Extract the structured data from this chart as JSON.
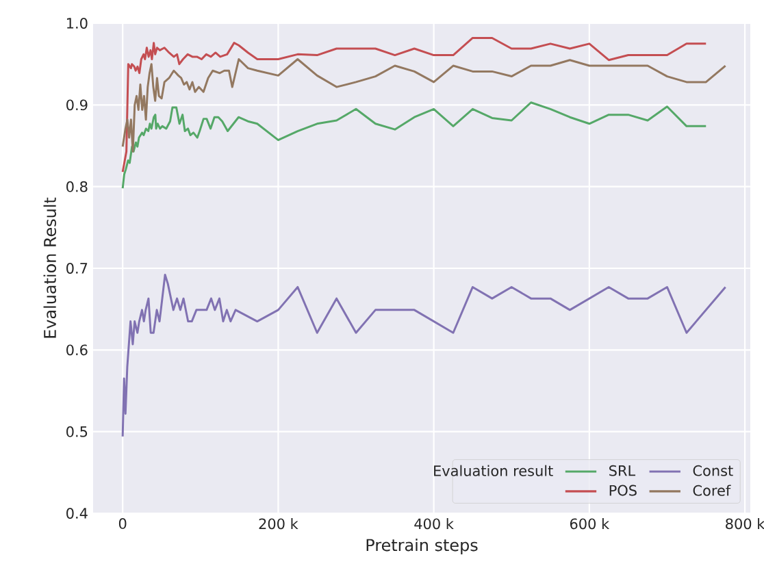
{
  "chart_data": {
    "type": "line",
    "xlabel": "Pretrain steps",
    "ylabel": "Evaluation Result",
    "legend_title": "Evaluation result",
    "xlim": [
      -38000,
      807000
    ],
    "ylim": [
      0.4,
      1.0
    ],
    "xticks": [
      {
        "value": 0,
        "label": "0"
      },
      {
        "value": 200000,
        "label": "200 k"
      },
      {
        "value": 400000,
        "label": "400 k"
      },
      {
        "value": 600000,
        "label": "600 k"
      },
      {
        "value": 800000,
        "label": "800 k"
      }
    ],
    "yticks": [
      {
        "value": 0.4,
        "label": "0.4"
      },
      {
        "value": 0.5,
        "label": "0.5"
      },
      {
        "value": 0.6,
        "label": "0.6"
      },
      {
        "value": 0.7,
        "label": "0.7"
      },
      {
        "value": 0.8,
        "label": "0.8"
      },
      {
        "value": 0.9,
        "label": "0.9"
      },
      {
        "value": 1.0,
        "label": "1.0"
      }
    ],
    "grid": true,
    "legend": "bottom right",
    "marker": "none",
    "line_style": "solid",
    "series": [
      {
        "name": "SRL",
        "color": "#55a868",
        "x": [
          0,
          2000,
          4000,
          7000,
          9000,
          12000,
          14000,
          17000,
          19000,
          21000,
          25000,
          27000,
          30000,
          33000,
          35000,
          37000,
          40000,
          42000,
          43000,
          45000,
          48000,
          51000,
          56000,
          61000,
          64000,
          69000,
          73000,
          77000,
          80000,
          84000,
          87000,
          91000,
          96000,
          99000,
          104000,
          108000,
          113000,
          118000,
          123000,
          128000,
          135000,
          149000,
          161000,
          173000,
          200000,
          225000,
          250000,
          275000,
          300000,
          325000,
          350000,
          375000,
          400000,
          425000,
          450000,
          475000,
          500000,
          525000,
          550000,
          575000,
          600000,
          625000,
          650000,
          675000,
          700000,
          725000,
          750000
        ],
        "values": [
          0.798,
          0.815,
          0.821,
          0.832,
          0.829,
          0.849,
          0.843,
          0.854,
          0.849,
          0.86,
          0.866,
          0.863,
          0.871,
          0.868,
          0.877,
          0.871,
          0.885,
          0.888,
          0.871,
          0.877,
          0.871,
          0.874,
          0.871,
          0.88,
          0.897,
          0.897,
          0.877,
          0.888,
          0.868,
          0.871,
          0.863,
          0.866,
          0.86,
          0.868,
          0.883,
          0.883,
          0.871,
          0.885,
          0.885,
          0.88,
          0.868,
          0.885,
          0.88,
          0.877,
          0.857,
          0.868,
          0.877,
          0.881,
          0.895,
          0.877,
          0.87,
          0.885,
          0.895,
          0.874,
          0.895,
          0.884,
          0.881,
          0.903,
          0.895,
          0.885,
          0.877,
          0.888,
          0.888,
          0.881,
          0.898,
          0.874,
          0.874
        ]
      },
      {
        "name": "POS",
        "color": "#c44e52",
        "x": [
          0,
          4800,
          7200,
          10700,
          11900,
          14900,
          16700,
          19100,
          21500,
          23900,
          26900,
          28700,
          31000,
          33400,
          35800,
          37600,
          40000,
          41800,
          44200,
          47800,
          53700,
          59700,
          65700,
          69900,
          72800,
          77600,
          83600,
          89600,
          95500,
          101500,
          107500,
          113400,
          119400,
          125400,
          134300,
          143300,
          149300,
          161200,
          173100,
          200000,
          225000,
          250000,
          275000,
          300000,
          325000,
          350000,
          375000,
          400000,
          425000,
          450000,
          475000,
          500000,
          525000,
          550000,
          575000,
          600000,
          625000,
          650000,
          675000,
          700000,
          725000,
          750000
        ],
        "values": [
          0.818,
          0.843,
          0.95,
          0.945,
          0.95,
          0.947,
          0.942,
          0.947,
          0.939,
          0.956,
          0.962,
          0.956,
          0.97,
          0.959,
          0.967,
          0.956,
          0.976,
          0.962,
          0.97,
          0.967,
          0.97,
          0.964,
          0.959,
          0.962,
          0.95,
          0.956,
          0.962,
          0.959,
          0.959,
          0.956,
          0.962,
          0.959,
          0.964,
          0.959,
          0.962,
          0.976,
          0.973,
          0.964,
          0.956,
          0.956,
          0.962,
          0.961,
          0.969,
          0.969,
          0.969,
          0.961,
          0.969,
          0.961,
          0.961,
          0.982,
          0.982,
          0.969,
          0.969,
          0.975,
          0.969,
          0.975,
          0.955,
          0.961,
          0.961,
          0.961,
          0.975,
          0.975
        ]
      },
      {
        "name": "Const",
        "color": "#8172b2",
        "x": [
          0,
          1800,
          3600,
          5900,
          10100,
          13000,
          15400,
          19000,
          21300,
          24900,
          27300,
          29600,
          33200,
          36100,
          39700,
          43900,
          47400,
          54500,
          58100,
          65200,
          69900,
          74100,
          78200,
          84100,
          88900,
          94800,
          107900,
          113800,
          118500,
          124400,
          129200,
          133900,
          138700,
          145200,
          173000,
          200000,
          225000,
          250000,
          275000,
          300000,
          325000,
          375000,
          425000,
          450000,
          475000,
          500000,
          525000,
          550000,
          575000,
          625000,
          650000,
          675000,
          700000,
          725000,
          775000
        ],
        "values": [
          0.494,
          0.565,
          0.522,
          0.579,
          0.635,
          0.607,
          0.635,
          0.621,
          0.635,
          0.649,
          0.635,
          0.649,
          0.663,
          0.621,
          0.621,
          0.649,
          0.635,
          0.692,
          0.681,
          0.649,
          0.663,
          0.649,
          0.663,
          0.635,
          0.635,
          0.649,
          0.649,
          0.663,
          0.649,
          0.663,
          0.635,
          0.649,
          0.635,
          0.649,
          0.635,
          0.649,
          0.677,
          0.621,
          0.663,
          0.621,
          0.649,
          0.649,
          0.621,
          0.677,
          0.663,
          0.677,
          0.663,
          0.663,
          0.649,
          0.677,
          0.663,
          0.663,
          0.677,
          0.621,
          0.677
        ]
      },
      {
        "name": "Coref",
        "color": "#937860",
        "x": [
          0,
          3600,
          6000,
          8300,
          10700,
          13100,
          15500,
          17900,
          20300,
          22700,
          25100,
          27500,
          29900,
          32200,
          34600,
          37000,
          39400,
          41800,
          44200,
          46600,
          50100,
          53700,
          59700,
          65700,
          71600,
          75200,
          78800,
          82400,
          86000,
          89600,
          93100,
          97900,
          103900,
          109900,
          115800,
          124800,
          130700,
          136700,
          140900,
          149300,
          161200,
          173100,
          200000,
          225000,
          250000,
          275000,
          300000,
          325000,
          350000,
          375000,
          400000,
          425000,
          450000,
          475000,
          500000,
          525000,
          550000,
          575000,
          600000,
          625000,
          650000,
          675000,
          700000,
          725000,
          750000,
          775000
        ],
        "values": [
          0.849,
          0.871,
          0.882,
          0.86,
          0.882,
          0.843,
          0.9,
          0.911,
          0.894,
          0.925,
          0.894,
          0.911,
          0.882,
          0.922,
          0.939,
          0.95,
          0.922,
          0.905,
          0.933,
          0.911,
          0.908,
          0.928,
          0.933,
          0.942,
          0.936,
          0.933,
          0.925,
          0.928,
          0.919,
          0.928,
          0.916,
          0.922,
          0.916,
          0.933,
          0.942,
          0.939,
          0.942,
          0.942,
          0.922,
          0.956,
          0.945,
          0.942,
          0.936,
          0.956,
          0.936,
          0.922,
          0.928,
          0.935,
          0.948,
          0.941,
          0.928,
          0.948,
          0.941,
          0.941,
          0.935,
          0.948,
          0.948,
          0.955,
          0.948,
          0.948,
          0.948,
          0.948,
          0.935,
          0.928,
          0.928,
          0.948
        ]
      }
    ]
  }
}
